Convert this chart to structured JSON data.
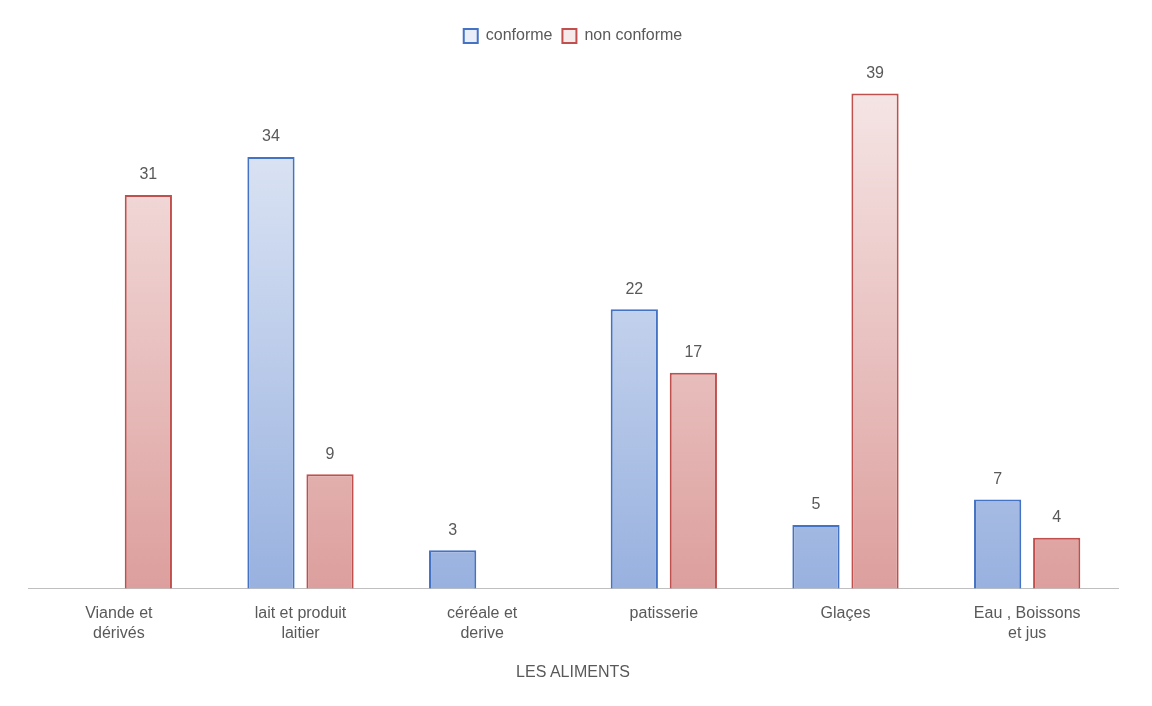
{
  "chart_data": {
    "type": "bar",
    "xlabel": "LES ALIMENTS",
    "categories": [
      "Viande et dérivés",
      "lait et produit laitier",
      "céréale et derive",
      "patisserie",
      "Glaçes",
      "Eau , Boissons et jus"
    ],
    "series": [
      {
        "name": "conforme",
        "color": "#4472c4",
        "values": [
          null,
          34,
          3,
          22,
          5,
          7
        ]
      },
      {
        "name": "non conforme",
        "color": "#c0504d",
        "values": [
          31,
          9,
          null,
          17,
          39,
          4
        ]
      }
    ],
    "data_labels": true,
    "legend": "top",
    "grid": false
  }
}
